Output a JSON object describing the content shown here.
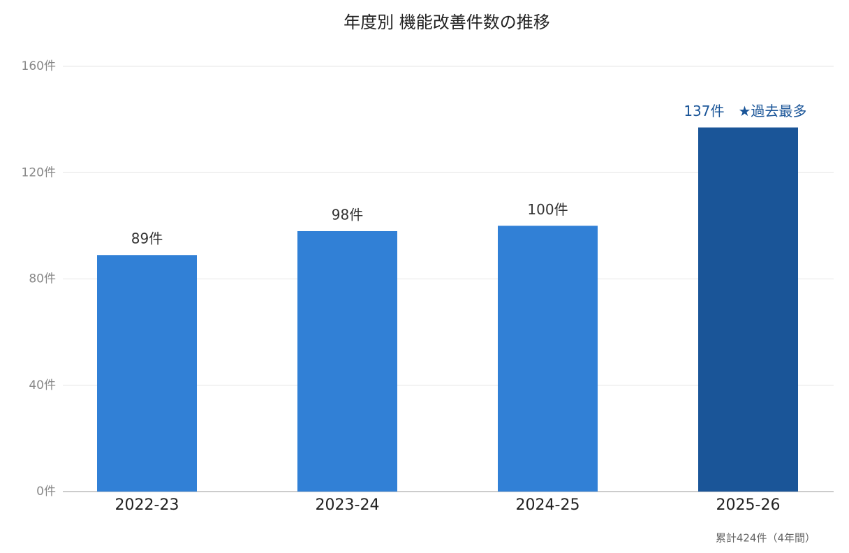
{
  "chart_data": {
    "type": "bar",
    "title": "年度別 機能改善件数の推移",
    "categories": [
      "2022-23",
      "2023-24",
      "2024-25",
      "2025-26"
    ],
    "values": [
      89,
      98,
      100,
      137
    ],
    "value_labels": [
      "89件",
      "98件",
      "100件",
      "137件"
    ],
    "colors": [
      "#3180d6",
      "#3180d6",
      "#3180d6",
      "#1a5598"
    ],
    "ylim": [
      0,
      160
    ],
    "yticks": [
      {
        "value": 0,
        "label": "0件"
      },
      {
        "value": 40,
        "label": "40件"
      },
      {
        "value": 80,
        "label": "80件"
      },
      {
        "value": 120,
        "label": "120件"
      },
      {
        "value": 160,
        "label": "160件"
      }
    ],
    "grid": true,
    "annotation": "★過去最多",
    "footnote": "累計424件（4年間）"
  }
}
